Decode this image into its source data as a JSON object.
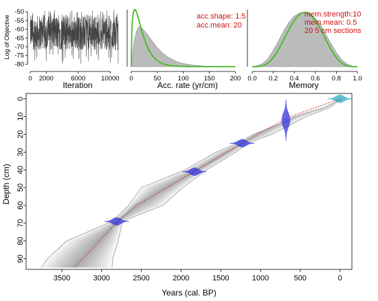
{
  "colors": {
    "trace": "#444444",
    "prior_line": "#44bb22",
    "posterior_fill": "#bbbbbb",
    "annotation": "#cc1111",
    "date_blue": "#3333dd",
    "date_cyan": "#33aabb",
    "median_red": "#dd2222",
    "envelope_grey": "#888888"
  },
  "chart_data": [
    {
      "id": "iteration",
      "type": "line",
      "description_of_values": "MCMC trace, random noise",
      "xlabel": "Iteration",
      "ylabel": "Log of Objective",
      "xticks": [
        0,
        2000,
        6000,
        10000
      ],
      "yticks": [
        -50,
        -55,
        -60,
        -65,
        -70,
        -75,
        -80
      ],
      "xlim": [
        0,
        11000
      ],
      "ylim": [
        -81,
        -48
      ],
      "n_iterations": 11000,
      "band": [
        -72,
        -52
      ]
    },
    {
      "id": "acc_rate",
      "type": "area",
      "xlabel": "Acc. rate (yr/cm)",
      "xticks": [
        0,
        50,
        100,
        150,
        200
      ],
      "xlim": [
        0,
        210
      ],
      "prior_gamma": {
        "shape": 1.5,
        "mean": 20
      },
      "posterior_curve": [
        [
          0,
          0.0
        ],
        [
          5,
          0.42
        ],
        [
          10,
          0.62
        ],
        [
          15,
          0.7
        ],
        [
          20,
          0.68
        ],
        [
          30,
          0.58
        ],
        [
          40,
          0.45
        ],
        [
          50,
          0.33
        ],
        [
          60,
          0.24
        ],
        [
          70,
          0.17
        ],
        [
          80,
          0.12
        ],
        [
          90,
          0.08
        ],
        [
          100,
          0.055
        ],
        [
          120,
          0.025
        ],
        [
          140,
          0.01
        ],
        [
          160,
          0.005
        ],
        [
          200,
          0.0
        ]
      ],
      "annotations": [
        "acc.shape: 1.5",
        "acc.mean: 20"
      ]
    },
    {
      "id": "memory",
      "type": "area",
      "xlabel": "Memory",
      "xticks": [
        0.0,
        0.2,
        0.4,
        0.6,
        0.8,
        1.0
      ],
      "xlim": [
        0,
        1
      ],
      "prior_beta": {
        "strength": 10,
        "mean": 0.5
      },
      "posterior_curve": [
        [
          0.0,
          0
        ],
        [
          0.05,
          0.02
        ],
        [
          0.1,
          0.06
        ],
        [
          0.15,
          0.15
        ],
        [
          0.2,
          0.3
        ],
        [
          0.25,
          0.48
        ],
        [
          0.3,
          0.66
        ],
        [
          0.35,
          0.82
        ],
        [
          0.4,
          0.93
        ],
        [
          0.45,
          0.99
        ],
        [
          0.5,
          1.0
        ],
        [
          0.55,
          0.97
        ],
        [
          0.6,
          0.89
        ],
        [
          0.65,
          0.77
        ],
        [
          0.7,
          0.6
        ],
        [
          0.75,
          0.42
        ],
        [
          0.8,
          0.26
        ],
        [
          0.85,
          0.13
        ],
        [
          0.9,
          0.05
        ],
        [
          0.95,
          0.01
        ],
        [
          1.0,
          0
        ]
      ],
      "annotations": [
        "mem.strength:10",
        "mem.mean: 0.5",
        "20 5 cm sections"
      ]
    },
    {
      "id": "age_depth",
      "type": "line",
      "xlabel": "Years (cal. BP)",
      "ylabel": "Depth (cm)",
      "xticks": [
        3500,
        3000,
        2500,
        2000,
        1500,
        1000,
        500,
        0
      ],
      "yticks": [
        0,
        10,
        20,
        30,
        40,
        50,
        60,
        70,
        80,
        90
      ],
      "xlim": [
        3950,
        -150
      ],
      "ylim": [
        96,
        -3
      ],
      "x_reversed": true,
      "median_age": [
        [
          0,
          0
        ],
        [
          10,
          630
        ],
        [
          20,
          1050
        ],
        [
          25,
          1225
        ],
        [
          30,
          1420
        ],
        [
          40,
          1800
        ],
        [
          50,
          2180
        ],
        [
          60,
          2560
        ],
        [
          69,
          2800
        ],
        [
          80,
          3030
        ],
        [
          90,
          3240
        ],
        [
          95,
          3350
        ]
      ],
      "envelope_older": [
        [
          0,
          -20
        ],
        [
          5,
          190
        ],
        [
          10,
          560
        ],
        [
          14,
          740
        ],
        [
          20,
          1090
        ],
        [
          25,
          1290
        ],
        [
          30,
          1560
        ],
        [
          40,
          1950
        ],
        [
          50,
          2500
        ],
        [
          60,
          2660
        ],
        [
          69,
          2870
        ],
        [
          80,
          3440
        ],
        [
          90,
          3680
        ],
        [
          95,
          3760
        ]
      ],
      "envelope_younger": [
        [
          0,
          -20
        ],
        [
          5,
          130
        ],
        [
          10,
          420
        ],
        [
          14,
          600
        ],
        [
          20,
          860
        ],
        [
          25,
          1160
        ],
        [
          30,
          1310
        ],
        [
          40,
          1680
        ],
        [
          50,
          1980
        ],
        [
          60,
          2230
        ],
        [
          69,
          2740
        ],
        [
          80,
          2790
        ],
        [
          90,
          2860
        ],
        [
          95,
          2870
        ]
      ],
      "dates": [
        {
          "depth": 0,
          "age": 0,
          "color": "cyan"
        },
        {
          "depth": 12,
          "age": 680,
          "color": "blue"
        },
        {
          "depth": 25,
          "age": 1230,
          "color": "blue"
        },
        {
          "depth": 41,
          "age": 1830,
          "color": "blue"
        },
        {
          "depth": 69,
          "age": 2810,
          "color": "blue"
        }
      ]
    }
  ]
}
